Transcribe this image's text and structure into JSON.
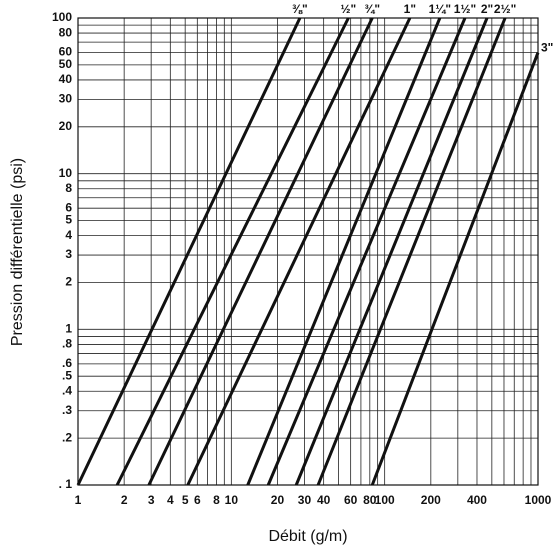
{
  "chart_data": {
    "type": "line",
    "log_x": true,
    "log_y": true,
    "grid": true,
    "x_label": "Débit (g/m)",
    "y_label": "Pression différentielle (psi)",
    "xlim": [
      1,
      1000
    ],
    "ylim": [
      0.1,
      100
    ],
    "xticks": [
      1,
      2,
      3,
      4,
      5,
      6,
      8,
      10,
      20,
      30,
      40,
      60,
      80,
      100,
      200,
      400,
      1000
    ],
    "yticks": [
      {
        "value": 0.1,
        "label": ". 1"
      },
      {
        "value": 0.2,
        "label": ".2"
      },
      {
        "value": 0.3,
        "label": ".3"
      },
      {
        "value": 0.4,
        "label": ".4"
      },
      {
        "value": 0.5,
        "label": ".5"
      },
      {
        "value": 0.6,
        "label": ".6"
      },
      {
        "value": 0.8,
        "label": ".8"
      },
      1,
      2,
      3,
      4,
      5,
      6,
      8,
      10,
      20,
      30,
      40,
      50,
      60,
      80,
      100
    ],
    "xgrid": [
      1,
      2,
      3,
      4,
      5,
      6,
      7,
      8,
      9,
      10,
      20,
      30,
      40,
      50,
      60,
      70,
      80,
      90,
      100,
      200,
      300,
      400,
      500,
      600,
      700,
      800,
      900,
      1000
    ],
    "ygrid": [
      0.1,
      0.2,
      0.3,
      0.4,
      0.5,
      0.6,
      0.7,
      0.8,
      0.9,
      1,
      2,
      3,
      4,
      5,
      6,
      7,
      8,
      9,
      10,
      20,
      30,
      40,
      50,
      60,
      70,
      80,
      90,
      100
    ],
    "series": [
      {
        "name": "⅜\"",
        "color": "#111111",
        "x": [
          1,
          28
        ],
        "values": [
          0.1,
          100
        ]
      },
      {
        "name": "½\"",
        "color": "#111111",
        "x": [
          1.8,
          58
        ],
        "values": [
          0.1,
          100
        ]
      },
      {
        "name": "¾\"",
        "color": "#111111",
        "x": [
          2.9,
          83
        ],
        "values": [
          0.1,
          100
        ]
      },
      {
        "name": "1\"",
        "color": "#111111",
        "x": [
          5.2,
          146
        ],
        "values": [
          0.1,
          100
        ]
      },
      {
        "name": "1¼\"",
        "color": "#111111",
        "x": [
          12.8,
          229
        ],
        "values": [
          0.1,
          100
        ]
      },
      {
        "name": "1½\"",
        "color": "#111111",
        "x": [
          17.4,
          334
        ],
        "values": [
          0.1,
          100
        ]
      },
      {
        "name": "2\"",
        "color": "#111111",
        "x": [
          26.5,
          465
        ],
        "values": [
          0.1,
          100
        ]
      },
      {
        "name": "2½\"",
        "color": "#111111",
        "x": [
          36.8,
          610
        ],
        "values": [
          0.1,
          100
        ]
      },
      {
        "name": "3\"",
        "color": "#111111",
        "x": [
          83,
          1000
        ],
        "values": [
          0.1,
          60
        ]
      }
    ]
  }
}
